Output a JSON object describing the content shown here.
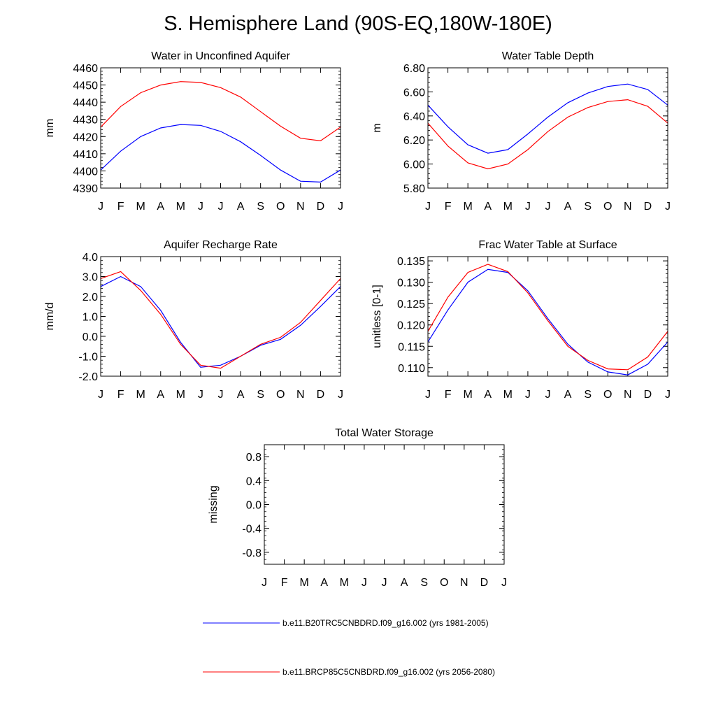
{
  "figure_title": "S. Hemisphere Land (90S-EQ,180W-180E)",
  "months": [
    "J",
    "F",
    "M",
    "A",
    "M",
    "J",
    "J",
    "A",
    "S",
    "O",
    "N",
    "D",
    "J"
  ],
  "legend": [
    {
      "label": "b.e11.B20TRC5CNBDRD.f09_g16.002 (yrs 1981-2005)",
      "color": "#0000ff"
    },
    {
      "label": "b.e11.BRCP85C5CNBDRD.f09_g16.002 (yrs 2056-2080)",
      "color": "#ff0000"
    }
  ],
  "chart_data": [
    {
      "type": "line",
      "title": "Water in Unconfined Aquifer",
      "ylabel": "mm",
      "ylim": [
        4390,
        4460
      ],
      "yticks": [
        4390,
        4400,
        4410,
        4420,
        4430,
        4440,
        4450,
        4460
      ],
      "ytick_labels": [
        "4390",
        "4400",
        "4410",
        "4420",
        "4430",
        "4440",
        "4450",
        "4460"
      ],
      "series": [
        {
          "color": "#0000ff",
          "values": [
            4400.5,
            4411.5,
            4420.0,
            4425.0,
            4427.0,
            4426.5,
            4423.0,
            4417.0,
            4409.0,
            4400.5,
            4394.0,
            4393.5,
            4400.5
          ]
        },
        {
          "color": "#ff0000",
          "values": [
            4425.5,
            4437.5,
            4445.5,
            4450.0,
            4452.0,
            4451.5,
            4448.5,
            4443.0,
            4434.5,
            4426.0,
            4419.0,
            4417.5,
            4425.5
          ]
        }
      ]
    },
    {
      "type": "line",
      "title": "Water Table Depth",
      "ylabel": "m",
      "ylim": [
        5.8,
        6.8
      ],
      "yticks": [
        5.8,
        6.0,
        6.2,
        6.4,
        6.6,
        6.8
      ],
      "ytick_labels": [
        "5.80",
        "6.00",
        "6.20",
        "6.40",
        "6.60",
        "6.80"
      ],
      "series": [
        {
          "color": "#0000ff",
          "values": [
            6.49,
            6.31,
            6.16,
            6.09,
            6.12,
            6.25,
            6.39,
            6.51,
            6.59,
            6.645,
            6.665,
            6.62,
            6.49
          ]
        },
        {
          "color": "#ff0000",
          "values": [
            6.34,
            6.15,
            6.01,
            5.96,
            6.0,
            6.12,
            6.27,
            6.39,
            6.47,
            6.52,
            6.535,
            6.48,
            6.34
          ]
        }
      ]
    },
    {
      "type": "line",
      "title": "Aquifer Recharge Rate",
      "ylabel": "mm/d",
      "ylim": [
        -2.0,
        4.0
      ],
      "yticks": [
        -2.0,
        -1.0,
        0.0,
        1.0,
        2.0,
        3.0,
        4.0
      ],
      "ytick_labels": [
        "-2.0",
        "-1.0",
        "0.0",
        "1.0",
        "2.0",
        "3.0",
        "4.0"
      ],
      "series": [
        {
          "color": "#0000ff",
          "values": [
            2.5,
            3.0,
            2.5,
            1.3,
            -0.3,
            -1.55,
            -1.45,
            -1.0,
            -0.45,
            -0.15,
            0.55,
            1.5,
            2.5
          ]
        },
        {
          "color": "#ff0000",
          "values": [
            2.9,
            3.25,
            2.3,
            1.1,
            -0.4,
            -1.45,
            -1.6,
            -1.0,
            -0.4,
            -0.05,
            0.7,
            1.8,
            2.9
          ]
        }
      ]
    },
    {
      "type": "line",
      "title": "Frac Water Table at Surface",
      "ylabel": "unitless [0-1]",
      "ylim": [
        0.108,
        0.136
      ],
      "yticks": [
        0.11,
        0.115,
        0.12,
        0.125,
        0.13,
        0.135
      ],
      "ytick_labels": [
        "0.110",
        "0.115",
        "0.120",
        "0.125",
        "0.130",
        "0.135"
      ],
      "series": [
        {
          "color": "#0000ff",
          "values": [
            0.116,
            0.1235,
            0.13,
            0.133,
            0.1323,
            0.128,
            0.1215,
            0.1155,
            0.1113,
            0.109,
            0.1083,
            0.1108,
            0.116
          ]
        },
        {
          "color": "#ff0000",
          "values": [
            0.1185,
            0.1265,
            0.1323,
            0.1342,
            0.1325,
            0.1275,
            0.121,
            0.115,
            0.1117,
            0.1097,
            0.1095,
            0.1125,
            0.1185
          ]
        }
      ]
    },
    {
      "type": "line",
      "title": "Total Water Storage",
      "ylabel": "missing",
      "ylim": [
        -1.0,
        1.0
      ],
      "yticks": [
        -0.8,
        -0.4,
        0.0,
        0.4,
        0.8
      ],
      "ytick_labels": [
        "-0.8",
        "-0.4",
        "0.0",
        "0.4",
        "0.8"
      ],
      "series": []
    }
  ]
}
